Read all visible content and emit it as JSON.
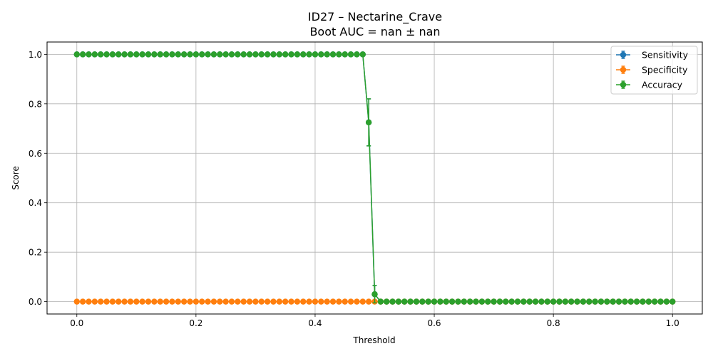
{
  "chart_data": {
    "type": "line",
    "title": "ID27 – Nectarine_Crave",
    "subtitle": "Boot AUC = nan ± nan",
    "xlabel": "Threshold",
    "ylabel": "Score",
    "xlim": [
      -0.05,
      1.05
    ],
    "ylim": [
      -0.05,
      1.05
    ],
    "xticks": [
      0.0,
      0.2,
      0.4,
      0.6,
      0.8,
      1.0
    ],
    "xtick_labels": [
      "0.0",
      "0.2",
      "0.4",
      "0.6",
      "0.8",
      "1.0"
    ],
    "yticks": [
      0.0,
      0.2,
      0.4,
      0.6,
      0.8,
      1.0
    ],
    "ytick_labels": [
      "0.0",
      "0.2",
      "0.4",
      "0.6",
      "0.8",
      "1.0"
    ],
    "grid": true,
    "legend_position": "top-right",
    "markers": "circle with error bars",
    "series": [
      {
        "name": "Sensitivity",
        "color": "#1f77b4",
        "points": [
          [
            0.0,
            1.0
          ],
          [
            0.48,
            1.0
          ],
          [
            0.49,
            0.725
          ],
          [
            0.5,
            0.03
          ],
          [
            0.51,
            0.0
          ],
          [
            1.0,
            0.0
          ]
        ],
        "errors": [
          [
            0.49,
            0.095
          ],
          [
            0.5,
            0.035
          ]
        ]
      },
      {
        "name": "Specificity",
        "color": "#ff7f0e",
        "points": [
          [
            0.0,
            0.0
          ],
          [
            1.0,
            0.0
          ]
        ],
        "errors": []
      },
      {
        "name": "Accuracy",
        "color": "#2ca02c",
        "points": [
          [
            0.0,
            1.0
          ],
          [
            0.48,
            1.0
          ],
          [
            0.49,
            0.725
          ],
          [
            0.5,
            0.03
          ],
          [
            0.51,
            0.0
          ],
          [
            1.0,
            0.0
          ]
        ],
        "errors": [
          [
            0.49,
            0.095
          ],
          [
            0.5,
            0.035
          ]
        ]
      }
    ]
  }
}
